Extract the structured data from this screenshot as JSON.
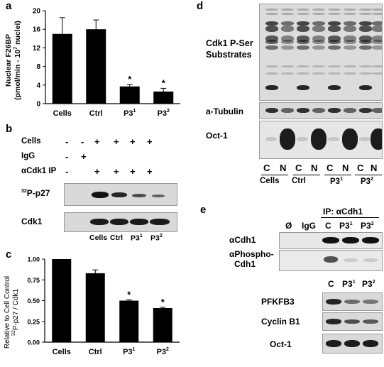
{
  "panels": {
    "a": {
      "label": "a",
      "chart_data": {
        "type": "bar",
        "ylabel_line1": "Nuclear F26BP",
        "ylabel_line2": "(pmol/min - 10",
        "ylabel_exp": "7",
        "ylabel_tail": " nuclei)",
        "ylim": [
          0,
          20
        ],
        "yticks": [
          "0",
          "4",
          "8",
          "12",
          "16",
          "20"
        ],
        "categories": [
          "Cells",
          "Ctrl",
          "P3",
          "P3"
        ],
        "category_sups": [
          "",
          "",
          "1",
          "2"
        ],
        "values": [
          15.0,
          16.0,
          3.7,
          2.6
        ],
        "errors": [
          3.5,
          2.0,
          0.4,
          0.7
        ],
        "stars": [
          "",
          "",
          "*",
          "*"
        ]
      }
    },
    "b": {
      "label": "b",
      "rows": [
        {
          "label": "Cells",
          "marks": [
            "-",
            "-",
            "+",
            "+",
            "+",
            "+"
          ]
        },
        {
          "label": "IgG",
          "marks": [
            "-",
            "+",
            "",
            "",
            "",
            ""
          ]
        },
        {
          "label": "αCdk1 IP",
          "marks": [
            "-",
            "",
            "+",
            "+",
            "+",
            "+"
          ]
        }
      ],
      "blots": [
        {
          "label_sup": "32",
          "label": "P-p27"
        },
        {
          "label_sup": "",
          "label": "Cdk1"
        }
      ],
      "lanes": [
        "Cells",
        "Ctrl",
        "P3",
        "P3"
      ],
      "lane_sups": [
        "",
        "",
        "1",
        "2"
      ]
    },
    "c": {
      "label": "c",
      "chart_data": {
        "type": "bar",
        "ylabel_line1": "Relative to Cell Control",
        "ylabel_sup": "32",
        "ylabel_line2": "P-p27 / Cdk1",
        "ylim": [
          0,
          1.0
        ],
        "yticks": [
          "0.00",
          "0.25",
          "0.50",
          "0.75",
          "1.00"
        ],
        "categories": [
          "Cells",
          "Ctrl",
          "P3",
          "P3"
        ],
        "category_sups": [
          "",
          "",
          "1",
          "2"
        ],
        "values": [
          1.0,
          0.83,
          0.5,
          0.41
        ],
        "errors": [
          0.0,
          0.04,
          0.01,
          0.01
        ],
        "stars": [
          "",
          "",
          "*",
          "*"
        ]
      }
    },
    "d": {
      "label": "d",
      "blots": [
        {
          "label": "Cdk1 P-Ser",
          "label2": "Substrates"
        },
        {
          "label": "a-Tubulin",
          "label2": ""
        },
        {
          "label": "Oct-1",
          "label2": ""
        }
      ],
      "lanes": [
        "C",
        "N",
        "C",
        "N",
        "C",
        "N",
        "C",
        "N"
      ],
      "groups": [
        "Cells",
        "Ctrl",
        "P3",
        "P3"
      ],
      "group_sups": [
        "",
        "",
        "1",
        "2"
      ]
    },
    "e": {
      "label": "e",
      "ip_label": "IP:  αCdh1",
      "lanes_top": [
        "Ø",
        "IgG",
        "C",
        "P3",
        "P3"
      ],
      "lanes_top_sups": [
        "",
        "",
        "",
        "1",
        "2"
      ],
      "blots_top": [
        {
          "label": "αCdh1",
          "label2": ""
        },
        {
          "label": "αPhospho-",
          "label2": "Cdh1"
        }
      ],
      "lanes_bottom": [
        "C",
        "P3",
        "P3"
      ],
      "lanes_bottom_sups": [
        "",
        "1",
        "2"
      ],
      "blots_bottom": [
        {
          "label": "PFKFB3"
        },
        {
          "label": "Cyclin B1"
        },
        {
          "label": "Oct-1"
        }
      ]
    }
  }
}
